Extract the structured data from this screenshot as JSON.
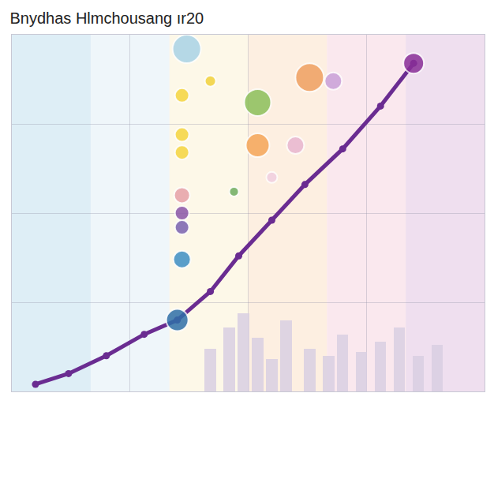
{
  "chart_data": {
    "type": "combo",
    "title": "Bnydhas Hlmchousang ır20",
    "xlim": [
      0,
      100
    ],
    "ylim": [
      0,
      100
    ],
    "xticks": [
      0,
      25,
      50,
      75,
      100
    ],
    "yticks": [
      0,
      25,
      50,
      75,
      100
    ],
    "grid": true,
    "tick_labels": false,
    "series": [
      {
        "type": "bar",
        "color": "#d8cfe2",
        "x": [
          42,
          46,
          49,
          52,
          55,
          58,
          63,
          67,
          70,
          74,
          78,
          82,
          86,
          90
        ],
        "values": [
          12,
          18,
          22,
          15,
          9,
          20,
          12,
          10,
          16,
          11,
          14,
          18,
          10,
          13
        ]
      },
      {
        "type": "line",
        "color": "#6a2c91",
        "marker": "circle",
        "line_style": "solid",
        "x": [
          5,
          12,
          20,
          28,
          35,
          42,
          48,
          55,
          62,
          70,
          78,
          85
        ],
        "values": [
          2,
          5,
          10,
          16,
          20,
          28,
          38,
          48,
          58,
          68,
          80,
          92
        ]
      },
      {
        "type": "scatter",
        "marker": "circle",
        "x": [
          37,
          63,
          52,
          52,
          68,
          42,
          36,
          36,
          36,
          36,
          36,
          36,
          36,
          35,
          60,
          55,
          47,
          85
        ],
        "values": [
          96,
          88,
          81,
          69,
          87,
          87,
          83,
          72,
          67,
          55,
          50,
          46,
          37,
          20,
          69,
          60,
          56,
          92
        ],
        "sizes": [
          36,
          36,
          34,
          30,
          22,
          14,
          18,
          18,
          18,
          20,
          18,
          18,
          22,
          28,
          22,
          14,
          12,
          26
        ],
        "colors": [
          "#a9d3e6",
          "#f0a060",
          "#8cbf5a",
          "#f5a658",
          "#c9a0d8",
          "#f2d23c",
          "#f5d540",
          "#f5d540",
          "#f5d540",
          "#e6a0a8",
          "#8a55a8",
          "#7a62b0",
          "#3e8fc4",
          "#2f6fa8",
          "#e8b6d0",
          "#f1cfe0",
          "#6fae60",
          "#8a2f98"
        ]
      }
    ]
  }
}
